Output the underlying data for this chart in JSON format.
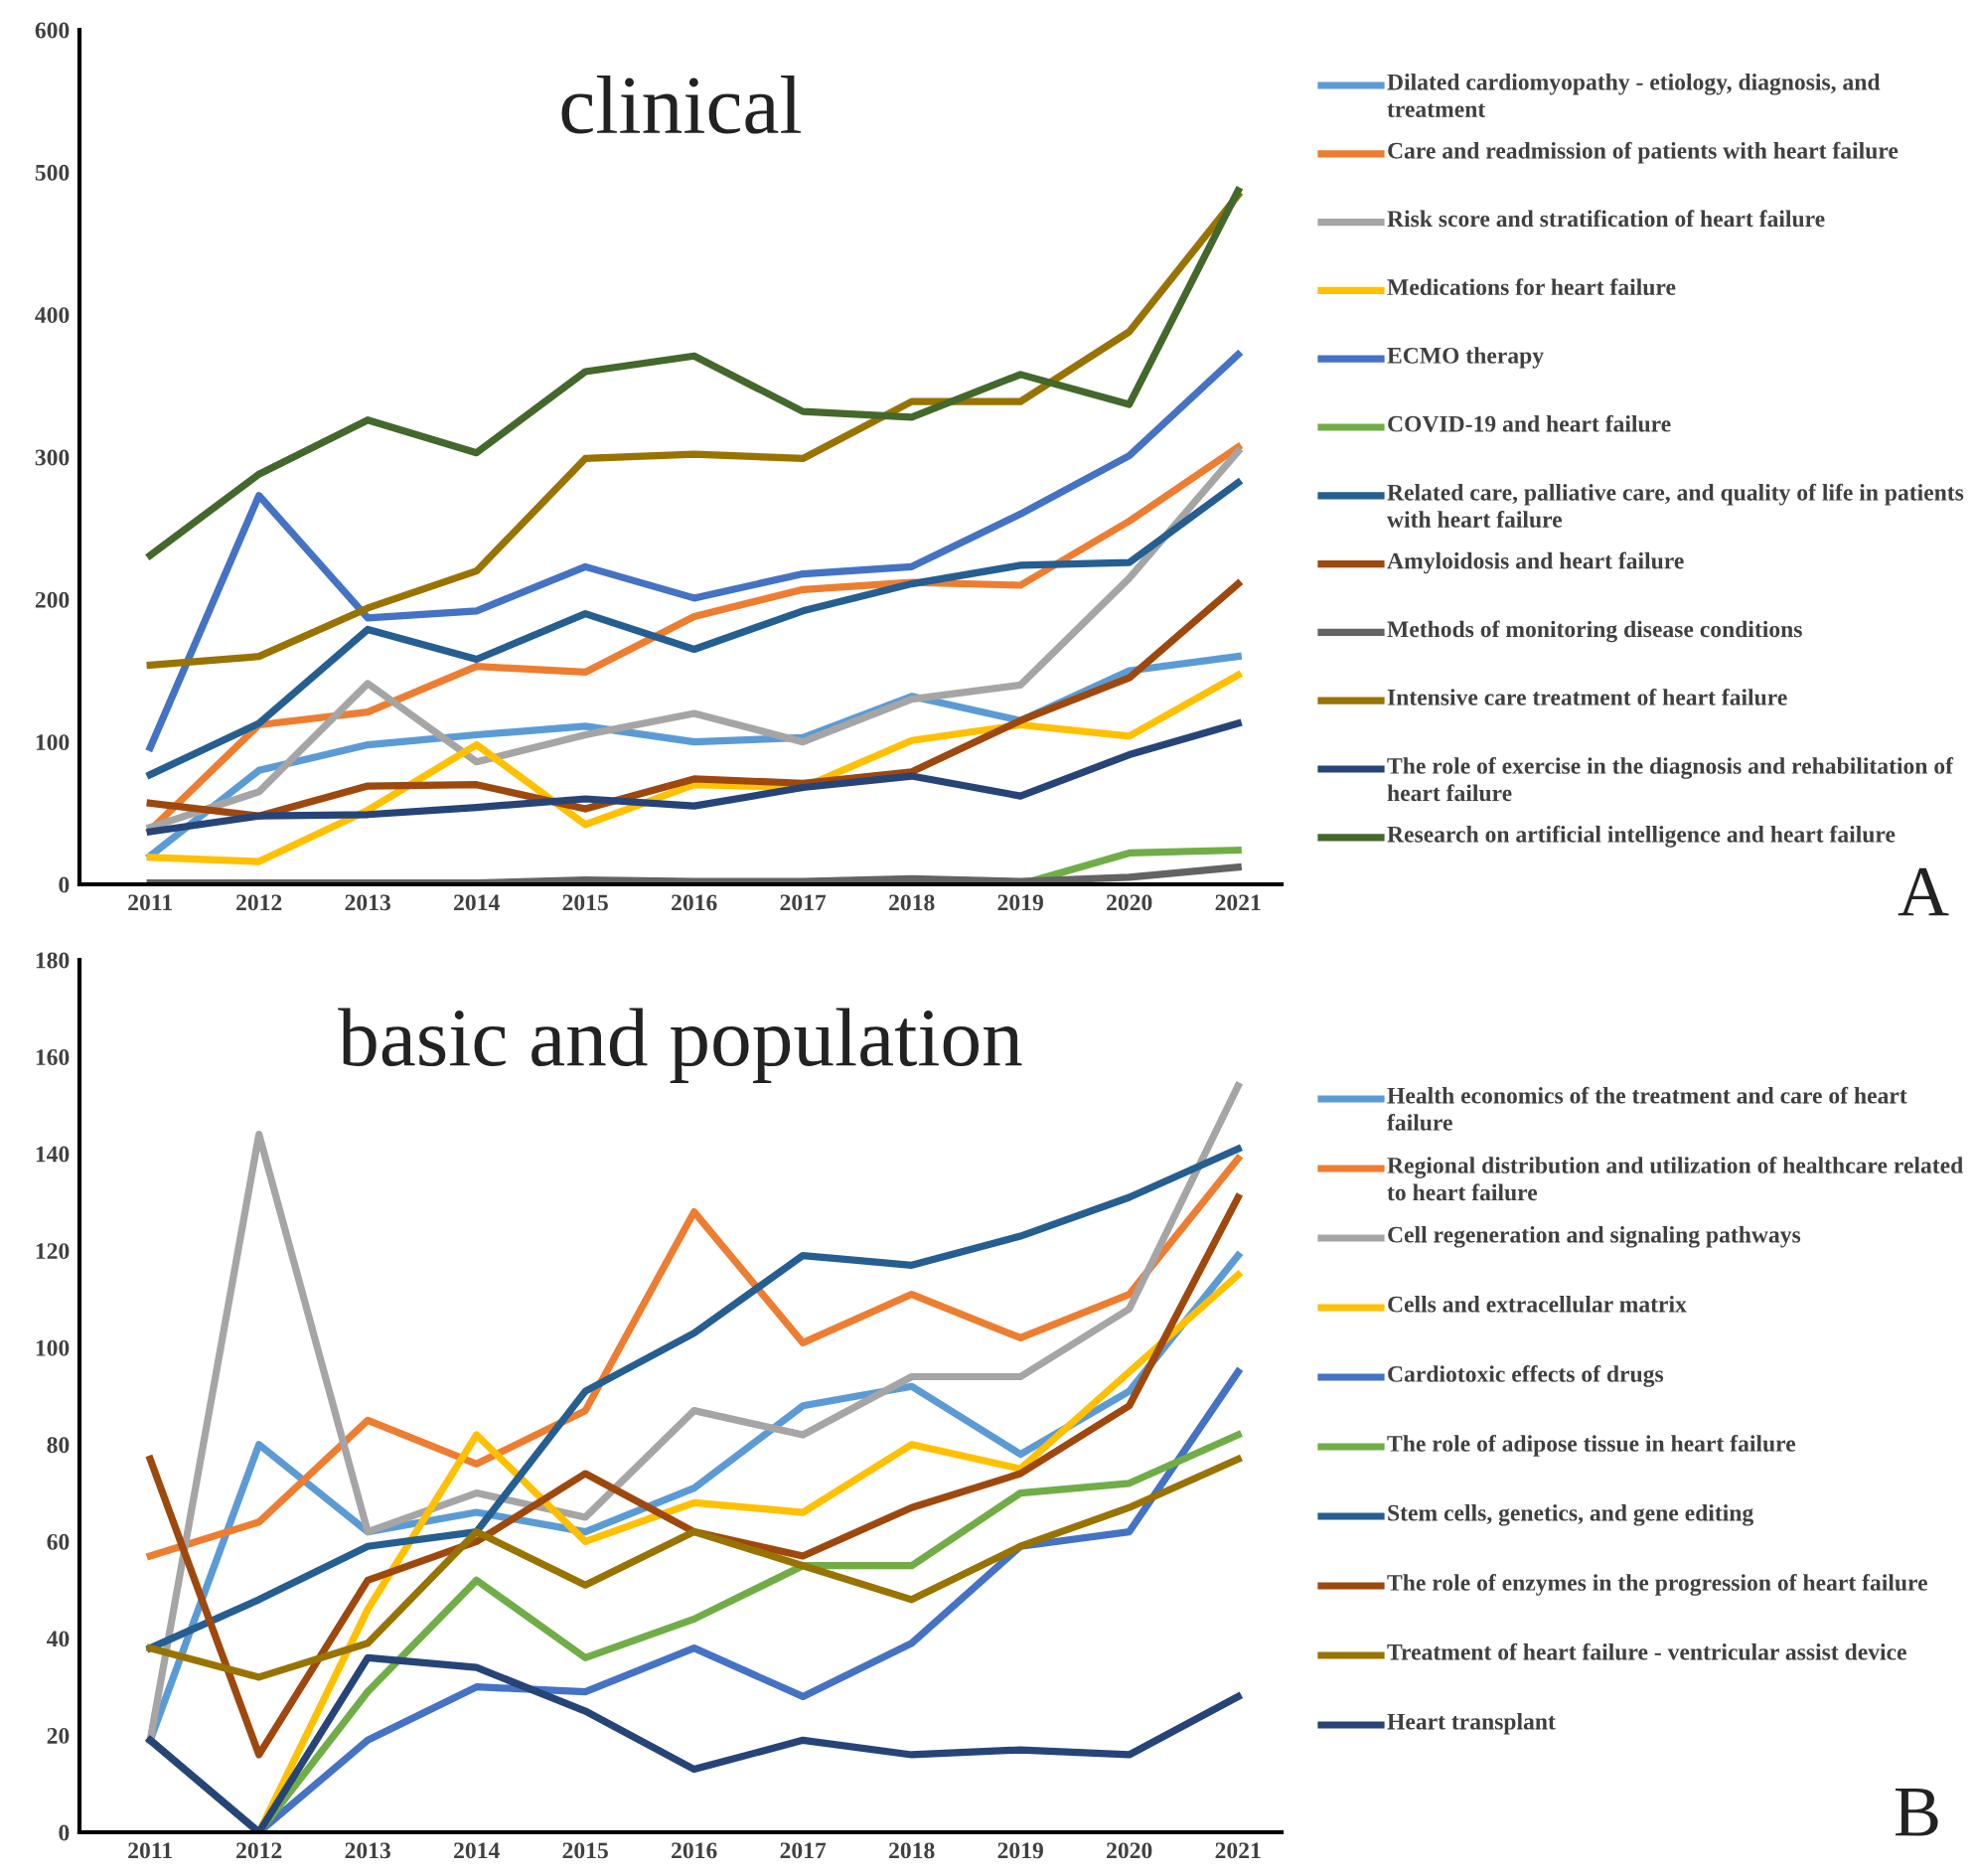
{
  "chart_data": [
    {
      "type": "line",
      "title": "clinical",
      "categories": [
        "2011",
        "2012",
        "2013",
        "2014",
        "2015",
        "2016",
        "2017",
        "2018",
        "2019",
        "2020",
        "2021"
      ],
      "ylim": [
        0,
        600
      ],
      "yticks": [
        0,
        100,
        200,
        300,
        400,
        500,
        600
      ],
      "grid": false,
      "legend": "right",
      "marker": "none",
      "line_style": "solid",
      "annotations": [
        "A"
      ],
      "series": [
        {
          "name": "Dilated cardiomyopathy - etiology, diagnosis, and treatment",
          "color": "#5b9bd5",
          "values": [
            20,
            80,
            98,
            105,
            111,
            100,
            103,
            132,
            115,
            150,
            160
          ]
        },
        {
          "name": "Care and readmission of patients with heart failure",
          "color": "#ed7d31",
          "values": [
            38,
            112,
            121,
            153,
            149,
            188,
            207,
            212,
            210,
            255,
            307
          ]
        },
        {
          "name": "Risk score and stratification of heart failure",
          "color": "#a5a5a5",
          "values": [
            40,
            65,
            141,
            86,
            105,
            120,
            100,
            130,
            140,
            215,
            304
          ]
        },
        {
          "name": "Medications for heart failure",
          "color": "#ffc000",
          "values": [
            19,
            16,
            52,
            98,
            42,
            70,
            68,
            101,
            112,
            104,
            147
          ]
        },
        {
          "name": "ECMO therapy",
          "color": "#4472c4",
          "values": [
            96,
            273,
            187,
            192,
            223,
            201,
            218,
            223,
            260,
            301,
            372
          ]
        },
        {
          "name": "COVID-19 and heart failure",
          "color": "#70ad47",
          "values": [
            null,
            null,
            null,
            null,
            null,
            null,
            null,
            null,
            0,
            22,
            24
          ]
        },
        {
          "name": "Related care, palliative care, and quality of life in patients with heart failure",
          "color": "#255e91",
          "values": [
            77,
            113,
            179,
            158,
            190,
            165,
            192,
            211,
            224,
            226,
            282
          ]
        },
        {
          "name": "Amyloidosis and heart failure",
          "color": "#9e480e",
          "values": [
            57,
            48,
            69,
            70,
            53,
            74,
            71,
            79,
            115,
            145,
            211
          ]
        },
        {
          "name": "Methods of monitoring disease conditions",
          "color": "#636363",
          "values": [
            1,
            1,
            1,
            1,
            3,
            2,
            2,
            4,
            2,
            5,
            12
          ]
        },
        {
          "name": "Intensive care treatment of heart failure",
          "color": "#997300",
          "values": [
            154,
            160,
            194,
            220,
            299,
            302,
            299,
            339,
            339,
            388,
            484
          ]
        },
        {
          "name": "The role of exercise in the diagnosis and rehabilitation of heart failure",
          "color": "#264478",
          "values": [
            37,
            48,
            49,
            54,
            60,
            55,
            68,
            76,
            62,
            91,
            113
          ]
        },
        {
          "name": "Research on artificial intelligence and heart failure",
          "color": "#43682b",
          "values": [
            231,
            288,
            326,
            303,
            360,
            371,
            332,
            328,
            358,
            337,
            487
          ]
        }
      ]
    },
    {
      "type": "line",
      "title": "basic and population",
      "categories": [
        "2011",
        "2012",
        "2013",
        "2014",
        "2015",
        "2016",
        "2017",
        "2018",
        "2019",
        "2020",
        "2021"
      ],
      "ylim": [
        0,
        180
      ],
      "yticks": [
        0,
        20,
        40,
        60,
        80,
        100,
        120,
        140,
        160,
        180
      ],
      "grid": false,
      "legend": "right",
      "marker": "none",
      "line_style": "solid",
      "annotations": [
        "B"
      ],
      "series": [
        {
          "name": "Health economics of the treatment and care of heart failure",
          "color": "#5b9bd5",
          "values": [
            19,
            80,
            62,
            66,
            62,
            71,
            88,
            92,
            78,
            91,
            119
          ]
        },
        {
          "name": "Regional distribution and utilization of healthcare related to heart failure",
          "color": "#ed7d31",
          "values": [
            57,
            64,
            85,
            76,
            87,
            128,
            101,
            111,
            102,
            111,
            139
          ]
        },
        {
          "name": "Cell regeneration and signaling pathways",
          "color": "#a5a5a5",
          "values": [
            19,
            144,
            62,
            70,
            65,
            87,
            82,
            94,
            94,
            108,
            154
          ]
        },
        {
          "name": "Cells and extracellular matrix",
          "color": "#ffc000",
          "values": [
            null,
            0,
            46,
            82,
            60,
            68,
            66,
            80,
            75,
            95,
            115
          ]
        },
        {
          "name": "Cardiotoxic effects of drugs",
          "color": "#4472c4",
          "values": [
            19,
            0,
            19,
            30,
            29,
            38,
            28,
            39,
            59,
            62,
            95
          ]
        },
        {
          "name": "The role of adipose tissue in heart failure",
          "color": "#70ad47",
          "values": [
            19,
            0,
            29,
            52,
            36,
            44,
            55,
            55,
            70,
            72,
            82
          ]
        },
        {
          "name": "Stem cells, genetics, and gene editing",
          "color": "#255e91",
          "values": [
            38,
            48,
            59,
            62,
            91,
            103,
            119,
            117,
            123,
            131,
            141
          ]
        },
        {
          "name": "The role of enzymes in the progression of heart failure",
          "color": "#9e480e",
          "values": [
            77,
            16,
            52,
            60,
            74,
            62,
            57,
            67,
            74,
            88,
            131
          ]
        },
        {
          "name": "Treatment of heart failure - ventricular assist device",
          "color": "#997300",
          "values": [
            38,
            32,
            39,
            62,
            51,
            62,
            55,
            48,
            59,
            67,
            77
          ]
        },
        {
          "name": "Heart transplant",
          "color": "#264478",
          "values": [
            19,
            0,
            36,
            34,
            25,
            13,
            19,
            16,
            17,
            16,
            28
          ]
        }
      ]
    }
  ]
}
